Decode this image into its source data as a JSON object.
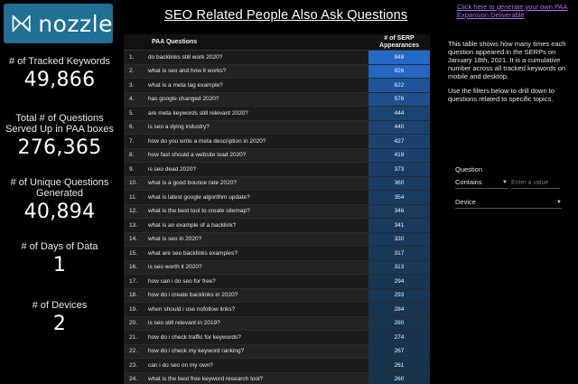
{
  "logo": {
    "text": "nozzle"
  },
  "title": "SEO Related People Also Ask Questions",
  "top_link": "Click here to generate your own PAA Expansion Deliverable",
  "stats": [
    {
      "label": "# of Tracked Keywords",
      "value": "49,866"
    },
    {
      "label": "Total # of Questions Served Up in PAA boxes",
      "value": "276,365"
    },
    {
      "label": "# of Unique Questions Generated",
      "value": "40,894"
    },
    {
      "label": "# of Days of Data",
      "value": "1"
    },
    {
      "label": "# of Devices",
      "value": "2"
    }
  ],
  "table": {
    "headers": {
      "question": "PAA Questions",
      "appearances": "# of SERP Appearances"
    },
    "rows": [
      {
        "n": "1.",
        "q": "do backlinks still work 2020?",
        "v": "848"
      },
      {
        "n": "2.",
        "q": "what is seo and how it works?",
        "v": "826"
      },
      {
        "n": "3.",
        "q": "what is a meta tag example?",
        "v": "622"
      },
      {
        "n": "4.",
        "q": "has google changed 2020?",
        "v": "576"
      },
      {
        "n": "5.",
        "q": "are meta keywords still relevant 2020?",
        "v": "444"
      },
      {
        "n": "6.",
        "q": "is seo a dying industry?",
        "v": "440"
      },
      {
        "n": "7.",
        "q": "how do you write a meta description in 2020?",
        "v": "427"
      },
      {
        "n": "8.",
        "q": "how fast should a website load 2020?",
        "v": "419"
      },
      {
        "n": "9.",
        "q": "is seo dead 2020?",
        "v": "373"
      },
      {
        "n": "10.",
        "q": "what is a good bounce rate 2020?",
        "v": "360"
      },
      {
        "n": "11.",
        "q": "what is latest google algorithm update?",
        "v": "354"
      },
      {
        "n": "12.",
        "q": "what is the best tool to create sitemap?",
        "v": "346"
      },
      {
        "n": "13.",
        "q": "what is an example of a backlink?",
        "v": "341"
      },
      {
        "n": "14.",
        "q": "what is seo in 2020?",
        "v": "330"
      },
      {
        "n": "15.",
        "q": "what are seo backlinks examples?",
        "v": "317"
      },
      {
        "n": "16.",
        "q": "is seo worth it 2020?",
        "v": "313"
      },
      {
        "n": "17.",
        "q": "how can i do seo for free?",
        "v": "294"
      },
      {
        "n": "18.",
        "q": "how do i create backlinks in 2020?",
        "v": "293"
      },
      {
        "n": "19.",
        "q": "when should i use nofollow links?",
        "v": "284"
      },
      {
        "n": "20.",
        "q": "is seo still relevant in 2019?",
        "v": "280"
      },
      {
        "n": "21.",
        "q": "how do i check traffic for keywords?",
        "v": "274"
      },
      {
        "n": "22.",
        "q": "how do i check my keyword ranking?",
        "v": "267"
      },
      {
        "n": "23.",
        "q": "can i do seo on my own?",
        "v": "261"
      },
      {
        "n": "24.",
        "q": "what is the best free keyword research tool?",
        "v": "260"
      }
    ],
    "max_value": 848,
    "bar_colors": {
      "high": "#2468c8",
      "low": "#16324a"
    }
  },
  "description_1": "This table shows how many times each question appeared in the SERPs on January 18th, 2021. It is a cumulative number across all tracked keywords on mobile and desktop.",
  "description_2": "Use the filters below to drill down to questions related to specific topics.",
  "filters": {
    "question_label": "Question",
    "operator_value": "Contains",
    "input_placeholder": "Enter a value",
    "device_label": "Device"
  }
}
